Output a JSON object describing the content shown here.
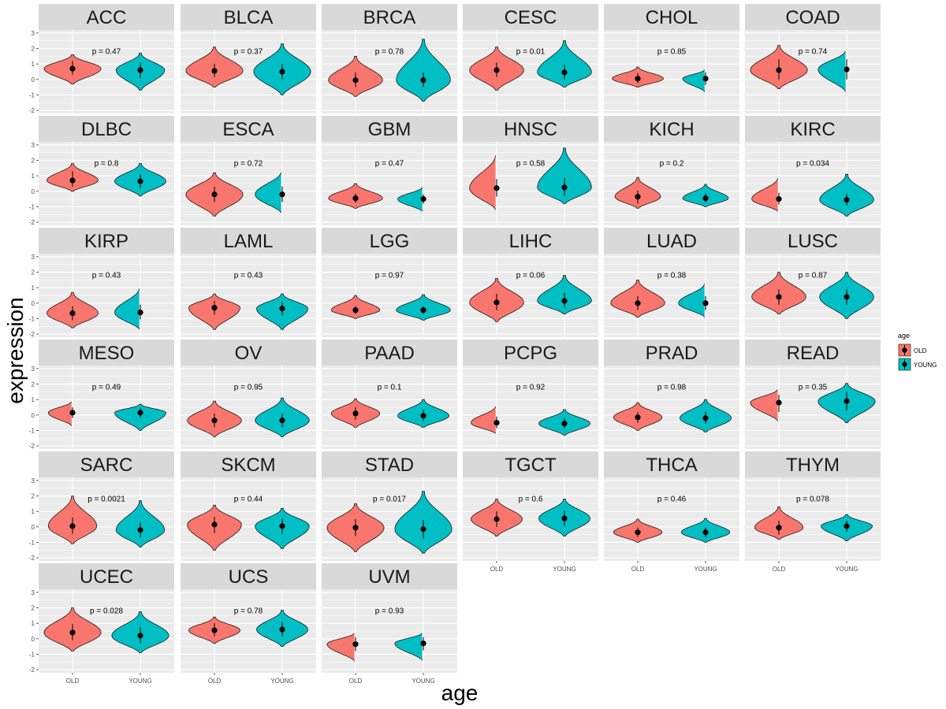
{
  "chart_data": {
    "type": "violin",
    "facet_layout": "6 columns x 6 rows, free x scales",
    "x_axis_title": "age",
    "y_axis_title": "expression",
    "ylim": [
      -2,
      3
    ],
    "y_ticks": [
      3,
      2,
      1,
      0,
      -1,
      -2
    ],
    "y_tick_labels": [
      "3",
      "2",
      "1",
      "0",
      "-1",
      "-2"
    ],
    "categories": [
      "OLD",
      "YOUNG"
    ],
    "legend": {
      "title": "age",
      "placement": "right",
      "entries": [
        {
          "label": "OLD",
          "color": "#F8766D"
        },
        {
          "label": "YOUNG",
          "color": "#00BFC4"
        }
      ]
    },
    "colors": {
      "OLD": "#F8766D",
      "YOUNG": "#00BFC4",
      "panel_bg": "#EBEBEB",
      "strip_bg": "#D9D9D9",
      "grid": "#FFFFFF"
    },
    "panels": [
      {
        "name": "ACC",
        "p": "p = 0.47",
        "old": {
          "min": -0.3,
          "max": 1.6,
          "mid": 0.7,
          "lo": 0.3,
          "hi": 1.2,
          "w": 1.0
        },
        "young": {
          "min": -0.7,
          "max": 1.7,
          "mid": 0.6,
          "lo": 0.1,
          "hi": 1.1,
          "w": 0.85
        }
      },
      {
        "name": "BLCA",
        "p": "p = 0.37",
        "old": {
          "min": -0.5,
          "max": 2.1,
          "mid": 0.55,
          "lo": 0.15,
          "hi": 1.0,
          "w": 1.0
        },
        "young": {
          "min": -1.0,
          "max": 2.3,
          "mid": 0.5,
          "lo": 0.0,
          "hi": 1.0,
          "w": 1.0
        }
      },
      {
        "name": "BRCA",
        "p": "p = 0.78",
        "old": {
          "min": -1.1,
          "max": 1.5,
          "mid": -0.05,
          "lo": -0.5,
          "hi": 0.45,
          "w": 0.95
        },
        "young": {
          "min": -1.4,
          "max": 2.6,
          "mid": -0.05,
          "lo": -0.5,
          "hi": 0.45,
          "w": 0.95
        }
      },
      {
        "name": "CESC",
        "p": "p = 0.01",
        "old": {
          "min": -0.7,
          "max": 2.1,
          "mid": 0.6,
          "lo": 0.15,
          "hi": 1.1,
          "w": 0.95
        },
        "young": {
          "min": -0.5,
          "max": 2.5,
          "mid": 0.45,
          "lo": 0.0,
          "hi": 0.95,
          "w": 0.95
        }
      },
      {
        "name": "CHOL",
        "p": "p = 0.85",
        "old": {
          "min": -0.5,
          "max": 0.8,
          "mid": 0.05,
          "lo": -0.25,
          "hi": 0.4,
          "w": 0.9
        },
        "young": {
          "min": -0.8,
          "max": 0.65,
          "mid": 0.05,
          "lo": -0.35,
          "hi": 0.45,
          "w": 0.8
        }
      },
      {
        "name": "COAD",
        "p": "p = 0.74",
        "old": {
          "min": -0.6,
          "max": 2.2,
          "mid": 0.6,
          "lo": 0.0,
          "hi": 1.3,
          "w": 1.0
        },
        "young": {
          "min": -0.8,
          "max": 1.9,
          "mid": 0.65,
          "lo": 0.0,
          "hi": 1.3,
          "w": 1.0
        }
      },
      {
        "name": "DLBC",
        "p": "p = 0.8",
        "old": {
          "min": 0.0,
          "max": 1.8,
          "mid": 0.7,
          "lo": 0.3,
          "hi": 1.3,
          "w": 0.9
        },
        "young": {
          "min": -0.3,
          "max": 1.8,
          "mid": 0.65,
          "lo": 0.2,
          "hi": 1.1,
          "w": 0.9
        }
      },
      {
        "name": "ESCA",
        "p": "p = 0.72",
        "old": {
          "min": -1.6,
          "max": 1.2,
          "mid": -0.2,
          "lo": -0.7,
          "hi": 0.3,
          "w": 1.0
        },
        "young": {
          "min": -1.4,
          "max": 1.3,
          "mid": -0.2,
          "lo": -0.7,
          "hi": 0.3,
          "w": 0.95
        }
      },
      {
        "name": "GBM",
        "p": "p = 0.47",
        "old": {
          "min": -1.1,
          "max": 0.5,
          "mid": -0.45,
          "lo": -0.75,
          "hi": -0.15,
          "w": 0.95
        },
        "young": {
          "min": -1.3,
          "max": 0.3,
          "mid": -0.5,
          "lo": -0.8,
          "hi": -0.2,
          "w": 0.9
        }
      },
      {
        "name": "HNSC",
        "p": "p = 0.58",
        "old": {
          "min": -1.2,
          "max": 2.4,
          "mid": 0.2,
          "lo": -0.35,
          "hi": 0.8,
          "w": 0.95
        },
        "young": {
          "min": -0.8,
          "max": 2.8,
          "mid": 0.25,
          "lo": -0.3,
          "hi": 0.85,
          "w": 0.95
        }
      },
      {
        "name": "KICH",
        "p": "p = 0.2",
        "old": {
          "min": -1.1,
          "max": 0.9,
          "mid": -0.35,
          "lo": -0.8,
          "hi": 0.05,
          "w": 0.8
        },
        "young": {
          "min": -1.0,
          "max": 0.45,
          "mid": -0.45,
          "lo": -0.7,
          "hi": -0.15,
          "w": 0.8
        }
      },
      {
        "name": "KIRC",
        "p": "p = 0.034",
        "old": {
          "min": -1.3,
          "max": 0.9,
          "mid": -0.5,
          "lo": -0.85,
          "hi": -0.1,
          "w": 0.95
        },
        "young": {
          "min": -1.6,
          "max": 1.1,
          "mid": -0.55,
          "lo": -0.9,
          "hi": -0.15,
          "w": 0.95
        }
      },
      {
        "name": "KIRP",
        "p": "p = 0.43",
        "old": {
          "min": -1.6,
          "max": 0.7,
          "mid": -0.65,
          "lo": -1.1,
          "hi": -0.2,
          "w": 0.9
        },
        "young": {
          "min": -1.7,
          "max": 1.0,
          "mid": -0.6,
          "lo": -1.05,
          "hi": -0.1,
          "w": 0.9
        }
      },
      {
        "name": "LAML",
        "p": "p = 0.43",
        "old": {
          "min": -1.7,
          "max": 0.6,
          "mid": -0.3,
          "lo": -0.75,
          "hi": 0.15,
          "w": 0.9
        },
        "young": {
          "min": -1.7,
          "max": 0.6,
          "mid": -0.35,
          "lo": -0.8,
          "hi": 0.1,
          "w": 0.9
        }
      },
      {
        "name": "LGG",
        "p": "p = 0.97",
        "old": {
          "min": -1.0,
          "max": 0.5,
          "mid": -0.45,
          "lo": -0.7,
          "hi": -0.2,
          "w": 0.85
        },
        "young": {
          "min": -1.1,
          "max": 0.55,
          "mid": -0.45,
          "lo": -0.7,
          "hi": -0.2,
          "w": 0.95
        }
      },
      {
        "name": "LIHC",
        "p": "p = 0.06",
        "old": {
          "min": -1.2,
          "max": 1.6,
          "mid": 0.05,
          "lo": -0.45,
          "hi": 0.6,
          "w": 0.95
        },
        "young": {
          "min": -0.7,
          "max": 1.8,
          "mid": 0.15,
          "lo": -0.3,
          "hi": 0.65,
          "w": 0.95
        }
      },
      {
        "name": "LUAD",
        "p": "p = 0.38",
        "old": {
          "min": -0.9,
          "max": 1.5,
          "mid": 0.0,
          "lo": -0.45,
          "hi": 0.45,
          "w": 0.95
        },
        "young": {
          "min": -0.9,
          "max": 1.3,
          "mid": 0.0,
          "lo": -0.45,
          "hi": 0.45,
          "w": 0.95
        }
      },
      {
        "name": "LUSC",
        "p": "p = 0.87",
        "old": {
          "min": -0.7,
          "max": 2.0,
          "mid": 0.4,
          "lo": -0.1,
          "hi": 0.9,
          "w": 0.95
        },
        "young": {
          "min": -1.0,
          "max": 2.0,
          "mid": 0.4,
          "lo": -0.1,
          "hi": 0.9,
          "w": 0.95
        }
      },
      {
        "name": "MESO",
        "p": "p = 0.49",
        "old": {
          "min": -0.7,
          "max": 0.9,
          "mid": 0.15,
          "lo": -0.2,
          "hi": 0.5,
          "w": 0.85
        },
        "young": {
          "min": -1.0,
          "max": 0.7,
          "mid": 0.15,
          "lo": -0.15,
          "hi": 0.45,
          "w": 0.9
        }
      },
      {
        "name": "OV",
        "p": "p = 0.95",
        "old": {
          "min": -1.4,
          "max": 0.9,
          "mid": -0.35,
          "lo": -0.8,
          "hi": 0.1,
          "w": 0.95
        },
        "young": {
          "min": -1.4,
          "max": 1.1,
          "mid": -0.35,
          "lo": -0.8,
          "hi": 0.1,
          "w": 0.95
        }
      },
      {
        "name": "PAAD",
        "p": "p = 0.1",
        "old": {
          "min": -0.8,
          "max": 1.05,
          "mid": 0.1,
          "lo": -0.3,
          "hi": 0.5,
          "w": 0.85
        },
        "young": {
          "min": -0.8,
          "max": 1.0,
          "mid": -0.05,
          "lo": -0.4,
          "hi": 0.35,
          "w": 0.9
        }
      },
      {
        "name": "PCPG",
        "p": "p = 0.92",
        "old": {
          "min": -1.2,
          "max": 0.6,
          "mid": -0.5,
          "lo": -0.85,
          "hi": -0.1,
          "w": 0.9
        },
        "young": {
          "min": -1.3,
          "max": 0.35,
          "mid": -0.55,
          "lo": -0.85,
          "hi": -0.2,
          "w": 0.9
        }
      },
      {
        "name": "PRAD",
        "p": "p = 0.98",
        "old": {
          "min": -1.0,
          "max": 0.8,
          "mid": -0.15,
          "lo": -0.5,
          "hi": 0.2,
          "w": 0.85
        },
        "young": {
          "min": -1.1,
          "max": 1.0,
          "mid": -0.2,
          "lo": -0.55,
          "hi": 0.2,
          "w": 0.9
        }
      },
      {
        "name": "READ",
        "p": "p = 0.35",
        "old": {
          "min": -0.4,
          "max": 1.7,
          "mid": 0.8,
          "lo": 0.2,
          "hi": 1.3,
          "w": 1.0
        },
        "young": {
          "min": -0.5,
          "max": 2.05,
          "mid": 0.9,
          "lo": 0.3,
          "hi": 1.5,
          "w": 1.0
        }
      },
      {
        "name": "SARC",
        "p": "p = 0.0021",
        "old": {
          "min": -1.1,
          "max": 2.0,
          "mid": 0.05,
          "lo": -0.45,
          "hi": 0.6,
          "w": 0.85
        },
        "young": {
          "min": -1.3,
          "max": 1.7,
          "mid": -0.2,
          "lo": -0.7,
          "hi": 0.3,
          "w": 0.85
        }
      },
      {
        "name": "SKCM",
        "p": "p = 0.44",
        "old": {
          "min": -1.5,
          "max": 1.4,
          "mid": 0.15,
          "lo": -0.4,
          "hi": 0.65,
          "w": 0.95
        },
        "young": {
          "min": -1.4,
          "max": 1.2,
          "mid": 0.05,
          "lo": -0.45,
          "hi": 0.55,
          "w": 0.95
        }
      },
      {
        "name": "STAD",
        "p": "p = 0.017",
        "old": {
          "min": -1.6,
          "max": 1.5,
          "mid": -0.05,
          "lo": -0.6,
          "hi": 0.5,
          "w": 1.0
        },
        "young": {
          "min": -1.7,
          "max": 2.3,
          "mid": -0.15,
          "lo": -0.75,
          "hi": 0.45,
          "w": 1.0
        }
      },
      {
        "name": "TGCT",
        "p": "p = 0.6",
        "old": {
          "min": -0.6,
          "max": 1.8,
          "mid": 0.5,
          "lo": 0.0,
          "hi": 1.0,
          "w": 0.9
        },
        "young": {
          "min": -0.6,
          "max": 1.8,
          "mid": 0.55,
          "lo": 0.05,
          "hi": 1.05,
          "w": 0.9
        }
      },
      {
        "name": "THCA",
        "p": "p = 0.46",
        "old": {
          "min": -1.0,
          "max": 0.5,
          "mid": -0.35,
          "lo": -0.65,
          "hi": -0.05,
          "w": 0.85
        },
        "young": {
          "min": -1.0,
          "max": 0.55,
          "mid": -0.35,
          "lo": -0.65,
          "hi": -0.05,
          "w": 0.85
        }
      },
      {
        "name": "THYM",
        "p": "p = 0.078",
        "old": {
          "min": -0.8,
          "max": 1.3,
          "mid": -0.05,
          "lo": -0.5,
          "hi": 0.4,
          "w": 0.85
        },
        "young": {
          "min": -0.9,
          "max": 0.8,
          "mid": 0.05,
          "lo": -0.3,
          "hi": 0.4,
          "w": 0.9
        }
      },
      {
        "name": "UCEC",
        "p": "p = 0.028",
        "old": {
          "min": -0.8,
          "max": 2.0,
          "mid": 0.4,
          "lo": -0.1,
          "hi": 0.95,
          "w": 1.0
        },
        "young": {
          "min": -0.9,
          "max": 1.75,
          "mid": 0.2,
          "lo": -0.3,
          "hi": 0.75,
          "w": 1.0
        }
      },
      {
        "name": "UCS",
        "p": "p = 0.78",
        "old": {
          "min": -0.3,
          "max": 1.4,
          "mid": 0.55,
          "lo": 0.15,
          "hi": 1.0,
          "w": 0.9
        },
        "young": {
          "min": -0.5,
          "max": 1.85,
          "mid": 0.6,
          "lo": 0.15,
          "hi": 1.1,
          "w": 0.9
        }
      },
      {
        "name": "UVM",
        "p": "p = 0.93",
        "old": {
          "min": -1.45,
          "max": 0.4,
          "mid": -0.35,
          "lo": -0.8,
          "hi": 0.1,
          "w": 1.0
        },
        "young": {
          "min": -1.4,
          "max": 0.4,
          "mid": -0.3,
          "lo": -0.75,
          "hi": 0.1,
          "w": 1.0
        }
      }
    ]
  }
}
